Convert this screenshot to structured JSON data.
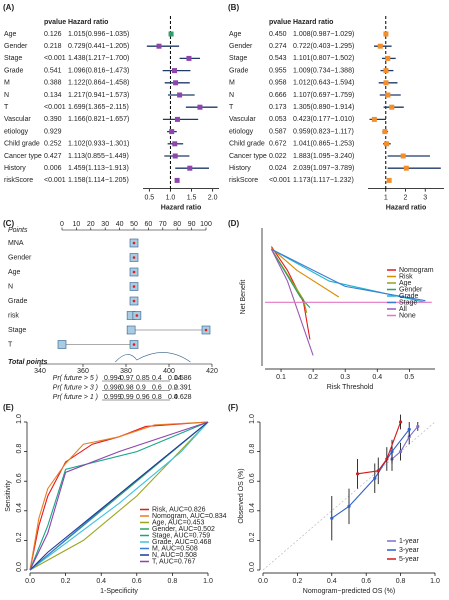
{
  "chart_data": [
    {
      "type": "forest",
      "panel": "(A)",
      "pvalue_header": "pvalue",
      "hr_header": "Hazard ratio",
      "xlabel": "Hazard ratio",
      "rows": [
        "Age",
        "Gender",
        "Stage",
        "Grade",
        "M",
        "N",
        "T",
        "Vascular",
        "etiology",
        "Child grade",
        "Cancer type",
        "History",
        "riskScore"
      ],
      "pvalues": [
        "0.126",
        "0.218",
        "<0.001",
        "0.541",
        "0.388",
        "0.134",
        "<0.001",
        "0.390",
        "0.929",
        "0.252",
        "0.427",
        "0.006",
        "<0.001"
      ],
      "hr_labels": [
        "1.015(0.996−1.035)",
        "0.729(0.441−1.205)",
        "1.438(1.217−1.700)",
        "1.096(0.816−1.473)",
        "1.122(0.864−1.458)",
        "1.217(0.941−1.573)",
        "1.699(1.365−2.115)",
        "1.166(0.821−1.657)",
        null,
        "1.102(0.933−1.301)",
        "1.113(0.855−1.449)",
        "1.459(1.113−1.913)",
        "1.158(1.114−1.205)"
      ],
      "hr": [
        1.015,
        0.729,
        1.438,
        1.096,
        1.122,
        1.217,
        1.699,
        1.166,
        1.03,
        1.102,
        1.113,
        1.459,
        1.158
      ],
      "lower": [
        0.996,
        0.441,
        1.217,
        0.816,
        0.864,
        0.941,
        1.365,
        0.821,
        0.92,
        0.933,
        0.855,
        1.113,
        1.114
      ],
      "upper": [
        1.035,
        1.205,
        1.7,
        1.473,
        1.458,
        1.573,
        2.115,
        1.657,
        1.15,
        1.301,
        1.449,
        1.913,
        1.205
      ],
      "colors": [
        "#2e9e6a",
        "#8e44ad",
        "#8e44ad",
        "#8e44ad",
        "#8e44ad",
        "#8e44ad",
        "#8e44ad",
        "#8e44ad",
        "#8e44ad",
        "#8e44ad",
        "#8e44ad",
        "#8e44ad",
        "#8e44ad"
      ],
      "ci_color": "#1f3a68",
      "reference_value": 1,
      "xlim": [
        0.35,
        2.15
      ],
      "xticks": [
        0.5,
        {
          "value": 1,
          "label": "1.0"
        },
        1.5,
        {
          "value": 2,
          "label": "2.0"
        }
      ]
    },
    {
      "type": "forest",
      "panel": "(B)",
      "pvalue_header": "pvalue",
      "hr_header": "Hazard ratio",
      "xlabel": "Hazard ratio",
      "rows": [
        "Age",
        "Gender",
        "Stage",
        "Grade",
        "M",
        "N",
        "T",
        "Vascular",
        "etiology",
        "Child grade",
        "Cancer type",
        "History",
        "riskScore"
      ],
      "pvalues": [
        "0.450",
        "0.274",
        "0.543",
        "0.955",
        "0.958",
        "0.666",
        "0.173",
        "0.053",
        "0.587",
        "0.672",
        "0.022",
        "0.024",
        "<0.001"
      ],
      "hr_labels": [
        "1.008(0.987−1.029)",
        "0.722(0.403−1.295)",
        "1.101(0.807−1.502)",
        "1.009(0.734−1.388)",
        "1.012(0.643−1.594)",
        "1.107(0.697−1.759)",
        "1.305(0.890−1.914)",
        "0.423(0.177−1.010)",
        "0.959(0.823−1.117)",
        "1.041(0.865−1.253)",
        "1.883(1.095−3.240)",
        "2.039(1.097−3.789)",
        "1.173(1.117−1.232)"
      ],
      "hr": [
        1.008,
        0.722,
        1.101,
        1.009,
        1.012,
        1.107,
        1.305,
        0.423,
        0.959,
        1.041,
        1.883,
        2.039,
        1.173
      ],
      "lower": [
        0.987,
        0.403,
        0.807,
        0.734,
        0.643,
        0.697,
        0.89,
        0.177,
        0.823,
        0.865,
        1.095,
        1.097,
        1.117
      ],
      "upper": [
        1.029,
        1.295,
        1.502,
        1.388,
        1.594,
        1.759,
        1.914,
        1.01,
        1.117,
        1.253,
        3.24,
        3.789,
        1.232
      ],
      "color": "#f28e2b",
      "ci_color": "#1f3a68",
      "reference_value": 1,
      "xlim": [
        0.1,
        3.95
      ],
      "xticks": [
        1,
        2,
        3
      ]
    },
    {
      "type": "nomogram",
      "panel": "(C)",
      "points_label": "Points",
      "total_label": "Total points",
      "points_lim": [
        0,
        100
      ],
      "points_ticks": [
        0,
        10,
        20,
        30,
        40,
        50,
        60,
        70,
        80,
        90,
        100
      ],
      "rows": [
        "MNA",
        "Gender",
        "Age",
        "N",
        "Grade",
        "risk",
        "Stage",
        "T"
      ],
      "points": [
        [
          50
        ],
        [
          50
        ],
        [
          50
        ],
        [
          50
        ],
        [
          50
        ],
        [
          48,
          52
        ],
        [
          48,
          100
        ],
        [
          0,
          50
        ]
      ],
      "total_lim": [
        340,
        420
      ],
      "total_ticks": [
        340,
        360,
        380,
        400,
        420
      ],
      "prob_rows": [
        {
          "label": "Pr( future > 5 )",
          "ticks": [
            "0.994",
            "0.97",
            "0.85",
            "0.4",
            "0.14"
          ],
          "highlight": "0.586"
        },
        {
          "label": "Pr( future > 3 )",
          "ticks": [
            "0.998",
            "0.98",
            "0.9",
            "0.6",
            "0.2"
          ],
          "highlight": "0.391"
        },
        {
          "label": "Pr( future > 1 )",
          "ticks": [
            "0.999",
            "0.99",
            "0.96",
            "0.8",
            "0.4"
          ],
          "highlight": "0.628"
        }
      ]
    },
    {
      "type": "line",
      "panel": "(D)",
      "xlabel": "Risk Threshold",
      "ylabel": "Net Benefit",
      "legend": "right",
      "xlim": [
        0.05,
        0.58
      ],
      "ylim": [
        -0.12,
        0.14
      ],
      "xticks": [
        0.1,
        0.2,
        0.3,
        0.4,
        0.5
      ],
      "series": [
        {
          "name": "Nomogram",
          "color": "#e41a1c",
          "x": [
            0.07,
            0.12,
            0.17,
            0.19
          ],
          "values": [
            0.105,
            0.06,
            0.0,
            -0.07
          ]
        },
        {
          "name": "Risk",
          "color": "#d98c00",
          "x": [
            0.07,
            0.15,
            0.28
          ],
          "values": [
            0.102,
            0.06,
            0.01
          ]
        },
        {
          "name": "Age",
          "color": "#8fa31f",
          "x": [
            0.07,
            0.17,
            0.18
          ],
          "values": [
            0.1,
            0.005,
            -0.02
          ]
        },
        {
          "name": "Gender",
          "color": "#2ca25f",
          "x": [
            0.07,
            0.16,
            0.19
          ],
          "values": [
            0.1,
            0.01,
            -0.01
          ]
        },
        {
          "name": "Grade",
          "color": "#1fb5c9",
          "x": [
            0.07,
            0.25,
            0.4,
            0.55
          ],
          "values": [
            0.1,
            0.04,
            0.02,
            0.0
          ]
        },
        {
          "name": "Stage",
          "color": "#3a7bd5",
          "x": [
            0.07,
            0.3,
            0.55
          ],
          "values": [
            0.1,
            0.03,
            0.003
          ]
        },
        {
          "name": "All",
          "color": "#9b59b6",
          "x": [
            0.07,
            0.12,
            0.2
          ],
          "values": [
            0.1,
            0.04,
            -0.1
          ]
        },
        {
          "name": "None",
          "color": "#e377c2",
          "x": [
            0.05,
            0.57
          ],
          "values": [
            0,
            0
          ]
        }
      ]
    },
    {
      "type": "line",
      "panel": "(E)",
      "xlabel": "1-Specificity",
      "ylabel": "Sensitivity",
      "legend": "bottom-right",
      "diagonal": true,
      "xlim": [
        0,
        1
      ],
      "ylim": [
        0,
        1
      ],
      "xticks": [
        {
          "value": 0,
          "label": "0.0"
        },
        0.2,
        0.4,
        0.6,
        0.8,
        {
          "value": 1,
          "label": "1.0"
        }
      ],
      "yticks": [
        {
          "value": 0,
          "label": "0.0"
        },
        0.2,
        0.4,
        0.6,
        0.8,
        {
          "value": 1,
          "label": "1.0"
        }
      ],
      "series": [
        {
          "name": "Risk, AUC=0.826",
          "color": "#e41a1c",
          "x": [
            0,
            0.05,
            0.1,
            0.2,
            0.35,
            0.5,
            0.65,
            1
          ],
          "values": [
            0,
            0.3,
            0.5,
            0.73,
            0.85,
            0.9,
            0.97,
            1
          ]
        },
        {
          "name": "Nomogram, AUC=0.834",
          "color": "#e67e22",
          "x": [
            0,
            0.05,
            0.1,
            0.2,
            0.3,
            0.5,
            0.7,
            1
          ],
          "values": [
            0,
            0.35,
            0.55,
            0.72,
            0.85,
            0.9,
            0.98,
            1
          ]
        },
        {
          "name": "Age, AUC=0.453",
          "color": "#9aa61f",
          "x": [
            0,
            0.3,
            0.6,
            0.8,
            1
          ],
          "values": [
            0,
            0.2,
            0.5,
            0.75,
            1
          ]
        },
        {
          "name": "Gender, AUC=0.502",
          "color": "#2ca25f",
          "x": [
            0,
            0.5,
            1
          ],
          "values": [
            0,
            0.5,
            1
          ]
        },
        {
          "name": "Stage, AUC=0.759",
          "color": "#17a589",
          "x": [
            0,
            0.1,
            0.2,
            0.6,
            1
          ],
          "values": [
            0,
            0.3,
            0.68,
            0.8,
            1
          ]
        },
        {
          "name": "Grade, AUC=0.468",
          "color": "#3fc1e0",
          "x": [
            0,
            0.5,
            0.85,
            1
          ],
          "values": [
            0,
            0.45,
            0.8,
            1
          ]
        },
        {
          "name": "M, AUC=0.508",
          "color": "#3a7bd5",
          "x": [
            0,
            0.5,
            1
          ],
          "values": [
            0,
            0.51,
            1
          ]
        },
        {
          "name": "N, AUC=0.508",
          "color": "#1f3a93",
          "x": [
            0,
            0.1,
            1
          ],
          "values": [
            0,
            0.12,
            1
          ]
        },
        {
          "name": "T, AUC=0.767",
          "color": "#8e44ad",
          "x": [
            0,
            0.1,
            0.2,
            0.5,
            1
          ],
          "values": [
            0,
            0.25,
            0.66,
            0.8,
            1
          ]
        }
      ]
    },
    {
      "type": "calibration",
      "panel": "(F)",
      "xlabel": "Nomogram−predicted OS (%)",
      "ylabel": "Observed OS (%)",
      "legend": "bottom-right",
      "diagonal": true,
      "xlim": [
        0,
        1
      ],
      "ylim": [
        0,
        1
      ],
      "xticks": [
        {
          "value": 0,
          "label": "0.0"
        },
        0.2,
        0.4,
        0.6,
        0.8,
        {
          "value": 1,
          "label": "1.0"
        }
      ],
      "yticks": [
        {
          "value": 0,
          "label": "0.0"
        },
        0.2,
        0.4,
        0.6,
        0.8,
        {
          "value": 1,
          "label": "1.0"
        }
      ],
      "series": [
        {
          "name": "1-year",
          "color": "#7d6fc9",
          "x": [
            0.75,
            0.8,
            0.85,
            0.9
          ],
          "values": [
            0.75,
            0.8,
            0.9,
            0.97
          ],
          "error": [
            0.08,
            0.06,
            0.05,
            0.03
          ]
        },
        {
          "name": "3-year",
          "color": "#2c5fd0",
          "x": [
            0.4,
            0.5,
            0.65,
            0.75,
            0.85
          ],
          "values": [
            0.35,
            0.43,
            0.62,
            0.8,
            0.95
          ],
          "error": [
            0.15,
            0.12,
            0.1,
            0.08,
            0.05
          ]
        },
        {
          "name": "5-year",
          "color": "#d7191c",
          "x": [
            0.55,
            0.67,
            0.72,
            0.8
          ],
          "values": [
            0.65,
            0.67,
            0.75,
            1.0
          ],
          "error": [
            0.1,
            0.09,
            0.08,
            0.05
          ]
        }
      ]
    }
  ]
}
